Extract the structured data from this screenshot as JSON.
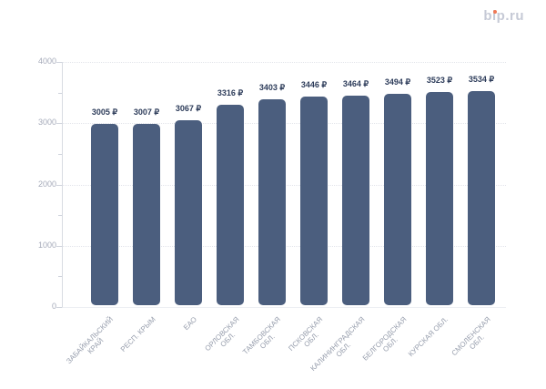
{
  "logo": {
    "text": "bip.ru",
    "dot_color": "#f07855",
    "text_color": "#c6cad6"
  },
  "chart_data": {
    "type": "bar",
    "title": "",
    "xlabel": "",
    "ylabel": "",
    "currency": "₽",
    "categories": [
      "ЗАБАЙКАЛЬСКИЙ КРАЙ",
      "РЕСП. КРЫМ",
      "ЕАО",
      "ОРЛОВСКАЯ ОБЛ.",
      "ТАМБОВСКАЯ ОБЛ.",
      "ПСКОВСКАЯ ОБЛ.",
      "КАЛИНИНГРАДСКАЯ ОБЛ.",
      "БЕЛГОРОДСКАЯ ОБЛ.",
      "КУРСКАЯ ОБЛ.",
      "СМОЛЕНСКАЯ ОБЛ."
    ],
    "category_label_lines": [
      [
        "ЗАБАЙКАЛЬСКИЙ",
        "КРАЙ"
      ],
      [
        "РЕСП. КРЫМ"
      ],
      [
        "ЕАО"
      ],
      [
        "ОРЛОВСКАЯ",
        "ОБЛ."
      ],
      [
        "ТАМБОВСКАЯ",
        "ОБЛ."
      ],
      [
        "ПСКОВСКАЯ",
        "ОБЛ."
      ],
      [
        "КАЛИНИНГРАДСКАЯ",
        "ОБЛ."
      ],
      [
        "БЕЛГОРОДСКАЯ",
        "ОБЛ."
      ],
      [
        "КУРСКАЯ ОБЛ."
      ],
      [
        "СМОЛЕНСКАЯ",
        "ОБЛ."
      ]
    ],
    "values": [
      3005,
      3007,
      3067,
      3316,
      3403,
      3446,
      3464,
      3494,
      3523,
      3534
    ],
    "value_labels": [
      "3005 ₽",
      "3007 ₽",
      "3067 ₽",
      "3316 ₽",
      "3403 ₽",
      "3446 ₽",
      "3464 ₽",
      "3494 ₽",
      "3523 ₽",
      "3534 ₽"
    ],
    "ylim": [
      0,
      4000
    ],
    "yticks": [
      0,
      1000,
      2000,
      3000,
      4000
    ],
    "ytick_labels": [
      "0",
      "1000",
      "2000",
      "3000",
      "4000"
    ],
    "minor_ytick_step": 500,
    "grid": "horizontal dotted",
    "legend": "none",
    "bar_color": "#4b5e7e",
    "value_label_color": "#2d3c5a",
    "axis_label_color": "#a5aab9",
    "category_label_color": "#969dac"
  }
}
